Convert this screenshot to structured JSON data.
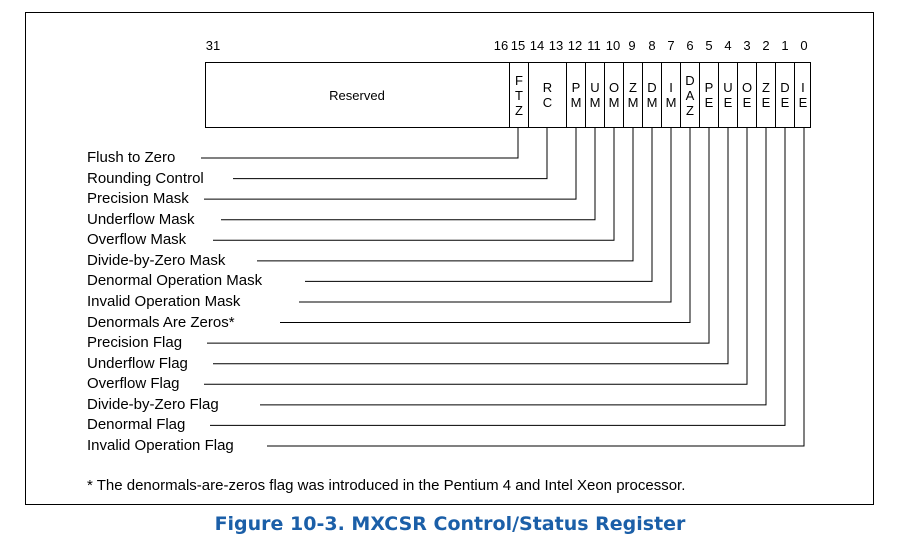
{
  "bit_numbers": [
    "31",
    "16",
    "15",
    "14",
    "13",
    "12",
    "11",
    "10",
    "9",
    "8",
    "7",
    "6",
    "5",
    "4",
    "3",
    "2",
    "1",
    "0"
  ],
  "fields": [
    {
      "id": "reserved",
      "text": "Reserved"
    },
    {
      "id": "ftz",
      "text": "F\nT\nZ"
    },
    {
      "id": "rc",
      "text": "R\nC"
    },
    {
      "id": "pm",
      "text": "P\nM"
    },
    {
      "id": "um",
      "text": "U\nM"
    },
    {
      "id": "om",
      "text": "O\nM"
    },
    {
      "id": "zm",
      "text": "Z\nM"
    },
    {
      "id": "dm",
      "text": "D\nM"
    },
    {
      "id": "im",
      "text": "I\nM"
    },
    {
      "id": "daz",
      "text": "D\nA\nZ"
    },
    {
      "id": "pe",
      "text": "P\nE"
    },
    {
      "id": "ue",
      "text": "U\nE"
    },
    {
      "id": "oe",
      "text": "O\nE"
    },
    {
      "id": "ze",
      "text": "Z\nE"
    },
    {
      "id": "de",
      "text": "D\nE"
    },
    {
      "id": "ie",
      "text": "I\nE"
    }
  ],
  "flags": [
    "Flush to Zero",
    "Rounding Control",
    "Precision Mask",
    "Underflow Mask",
    "Overflow Mask",
    "Divide-by-Zero Mask",
    "Denormal Operation Mask",
    "Invalid Operation Mask",
    "Denormals Are Zeros*",
    "Precision Flag",
    "Underflow Flag",
    "Overflow Flag",
    "Divide-by-Zero Flag",
    "Denormal Flag",
    "Invalid Operation Flag"
  ],
  "footnote": "* The denormals-are-zeros flag was introduced in the Pentium 4 and Intel Xeon processor.",
  "caption": "Figure 10-3.  MXCSR Control/Status Register",
  "colors": {
    "caption": "#1b5fa8",
    "lines": "#000000"
  }
}
